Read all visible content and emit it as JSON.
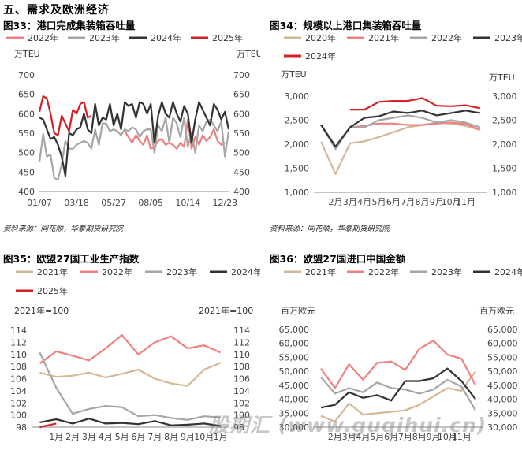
{
  "section_title": "五、需求及欧洲经济",
  "source_text": "资料来源：同花顺，华泰期货研究院",
  "watermark": "股期汇 (www.guqihui.cn)",
  "chart_data": [
    {
      "id": "c33",
      "type": "line",
      "title": "图33：港口完成集装箱吞吐量",
      "ylabel_left": "万TEU",
      "ylabel_right": "万TEU",
      "ylim": [
        400,
        700
      ],
      "yticks": [
        "400",
        "450",
        "500",
        "550",
        "600",
        "650",
        "700"
      ],
      "xticks": [
        "01/07",
        "03/18",
        "05/27",
        "08/05",
        "10/14",
        "12/23"
      ],
      "xdomain": [
        0,
        51
      ],
      "xtick_pos": [
        0,
        10,
        20,
        30,
        40,
        50
      ],
      "series": [
        {
          "name": "2022年",
          "color": "#f08080",
          "x": [
            23,
            24,
            25,
            26,
            27,
            28,
            29,
            30,
            31,
            32,
            33,
            34,
            35,
            36,
            37,
            38,
            39,
            40,
            41,
            42,
            43,
            44,
            45,
            46,
            47,
            48,
            49,
            50
          ],
          "values": [
            555,
            540,
            525,
            545,
            530,
            520,
            545,
            510,
            515,
            530,
            535,
            520,
            525,
            520,
            510,
            525,
            515,
            585,
            510,
            540,
            520,
            545,
            530,
            540,
            560,
            530,
            520,
            525
          ]
        },
        {
          "name": "2023年",
          "color": "#a6a6a6",
          "x": [
            0,
            1,
            2,
            3,
            4,
            5,
            6,
            7,
            8,
            9,
            10,
            11,
            12,
            13,
            14,
            15,
            16,
            17,
            18,
            19,
            20,
            21,
            22,
            23,
            24,
            25,
            26,
            27,
            28,
            29,
            30,
            31,
            32,
            33,
            34,
            35,
            36,
            37,
            38,
            39,
            40,
            41,
            42,
            43,
            44,
            45,
            46,
            47,
            48,
            49,
            50,
            51
          ],
          "values": [
            475,
            548,
            490,
            495,
            435,
            430,
            470,
            530,
            510,
            510,
            520,
            525,
            530,
            525,
            510,
            560,
            520,
            575,
            575,
            555,
            560,
            555,
            545,
            560,
            555,
            565,
            560,
            540,
            555,
            560,
            560,
            500,
            570,
            555,
            590,
            525,
            590,
            575,
            540,
            590,
            515,
            550,
            500,
            570,
            555,
            580,
            585,
            570,
            555,
            580,
            490,
            555
          ]
        },
        {
          "name": "2024年",
          "color": "#333333",
          "x": [
            0,
            1,
            2,
            3,
            4,
            5,
            6,
            7,
            8,
            9,
            10,
            11,
            12,
            13,
            14,
            15,
            16,
            17,
            18,
            19,
            20,
            21,
            22,
            23,
            24,
            25,
            26,
            27,
            28,
            29,
            30,
            31,
            32,
            33,
            34,
            35,
            36,
            37,
            38,
            39,
            40,
            41,
            42,
            43,
            44,
            45,
            46,
            47,
            48,
            49,
            50,
            51
          ],
          "values": [
            590,
            585,
            560,
            535,
            540,
            520,
            490,
            440,
            550,
            545,
            560,
            565,
            600,
            560,
            550,
            625,
            570,
            590,
            585,
            625,
            570,
            600,
            560,
            630,
            620,
            625,
            590,
            630,
            625,
            600,
            625,
            525,
            595,
            630,
            600,
            590,
            630,
            600,
            580,
            620,
            600,
            525,
            585,
            630,
            610,
            590,
            570,
            625,
            610,
            585,
            605,
            560
          ]
        },
        {
          "name": "2025年",
          "color": "#d71f26",
          "x": [
            0,
            1,
            2,
            3,
            4,
            5,
            6,
            7,
            8,
            9,
            10,
            11,
            12,
            13,
            14
          ],
          "values": [
            605,
            645,
            640,
            600,
            550,
            545,
            595,
            575,
            555,
            610,
            600,
            625,
            630,
            590,
            595
          ]
        }
      ]
    },
    {
      "id": "c34",
      "type": "line",
      "title": "图34：规模以上港口集装箱吞吐量",
      "ylabel_left": "万TEU",
      "ylabel_right": "万TEU",
      "ylim": [
        1000,
        3000
      ],
      "yticks": [
        "1,000",
        "1,500",
        "2,000",
        "2,500",
        "3,000"
      ],
      "xticks": [
        "2月",
        "3月",
        "4月",
        "5月",
        "6月",
        "7月",
        "8月",
        "9月",
        "10月",
        "11月"
      ],
      "series": [
        {
          "name": "2020年",
          "color": "#d4b896",
          "values": [
            2050,
            1380,
            2020,
            2060,
            2150,
            2250,
            2350,
            2400,
            2450,
            2430,
            2380,
            2300
          ]
        },
        {
          "name": "2021年",
          "color": "#f08080",
          "values": [
            2400,
            1950,
            2350,
            2380,
            2430,
            2430,
            2400,
            2400,
            2430,
            2450,
            2420,
            2300
          ]
        },
        {
          "name": "2022年",
          "color": "#a6a6a6",
          "values": [
            2400,
            1900,
            2350,
            2350,
            2500,
            2550,
            2600,
            2550,
            2450,
            2500,
            2450,
            2350
          ]
        },
        {
          "name": "2023年",
          "color": "#333333",
          "values": [
            2400,
            1950,
            2350,
            2550,
            2580,
            2680,
            2650,
            2700,
            2600,
            2650,
            2700,
            2650
          ]
        },
        {
          "name": "2024年",
          "color": "#d71f26",
          "values": [
            null,
            null,
            2720,
            2720,
            2880,
            2900,
            2900,
            2960,
            2800,
            2790,
            2810,
            2750
          ]
        }
      ]
    },
    {
      "id": "c35",
      "type": "line",
      "title": "图35：欧盟27国工业生产指数",
      "ylabel_left": "2021年=100",
      "ylabel_right": "2021年=100",
      "ylim": [
        98,
        114
      ],
      "yticks": [
        "98",
        "100",
        "102",
        "104",
        "106",
        "108",
        "110",
        "112",
        "114"
      ],
      "xticks": [
        "1月",
        "2月",
        "3月",
        "4月",
        "5月",
        "6月",
        "7月",
        "8月",
        "9月",
        "10月",
        "1月"
      ],
      "series": [
        {
          "name": "2021年",
          "color": "#d4b896",
          "values": [
            107.0,
            106.3,
            106.5,
            107.0,
            106.2,
            106.8,
            107.5,
            106.0,
            105.2,
            104.8,
            107.5,
            108.6
          ]
        },
        {
          "name": "2022年",
          "color": "#f08080",
          "values": [
            108.5,
            110.5,
            109.8,
            109.0,
            111.0,
            113.2,
            110.0,
            112.0,
            113.0,
            111.0,
            111.5,
            110.3
          ]
        },
        {
          "name": "2023年",
          "color": "#a6a6a6",
          "values": [
            110.3,
            104.5,
            100.2,
            101.0,
            101.5,
            101.3,
            99.8,
            100.0,
            99.5,
            99.2,
            99.8,
            99.6
          ]
        },
        {
          "name": "2024年",
          "color": "#333333",
          "values": [
            98.8,
            99.3,
            98.6,
            99.4,
            98.6,
            98.7,
            98.5,
            99.0,
            98.3,
            98.4,
            98.6,
            98.2
          ]
        },
        {
          "name": "2025年",
          "color": "#d71f26",
          "values": [
            98.0,
            98.6
          ]
        }
      ]
    },
    {
      "id": "c36",
      "type": "line",
      "title": "图36：欧盟27国进口中国金额",
      "ylabel_left": "百万欧元",
      "ylabel_right": "百万欧元",
      "ylim": [
        30000,
        65000
      ],
      "yticks": [
        "30,000",
        "35,000",
        "40,000",
        "45,000",
        "50,000",
        "55,000",
        "60,000",
        "65,000"
      ],
      "xticks": [
        "2月",
        "3月",
        "4月",
        "5月",
        "6月",
        "7月",
        "8月",
        "9月",
        "10月",
        "11月"
      ],
      "series": [
        {
          "name": "2021年",
          "color": "#d4b896",
          "values": [
            34000,
            32000,
            38500,
            34500,
            35000,
            35500,
            36000,
            38000,
            41000,
            44000,
            43000,
            50000
          ]
        },
        {
          "name": "2022年",
          "color": "#f08080",
          "values": [
            51000,
            44000,
            52500,
            47000,
            53000,
            53500,
            50500,
            58000,
            61000,
            56000,
            54500,
            45000
          ]
        },
        {
          "name": "2023年",
          "color": "#a6a6a6",
          "values": [
            48000,
            42000,
            44000,
            42500,
            46000,
            44000,
            43500,
            42000,
            43500,
            47000,
            44500,
            36000
          ]
        },
        {
          "name": "2024年",
          "color": "#333333",
          "values": [
            37000,
            38000,
            42500,
            40500,
            41500,
            39500,
            46500,
            46500,
            47500,
            51000,
            46500,
            40000
          ]
        }
      ]
    }
  ]
}
